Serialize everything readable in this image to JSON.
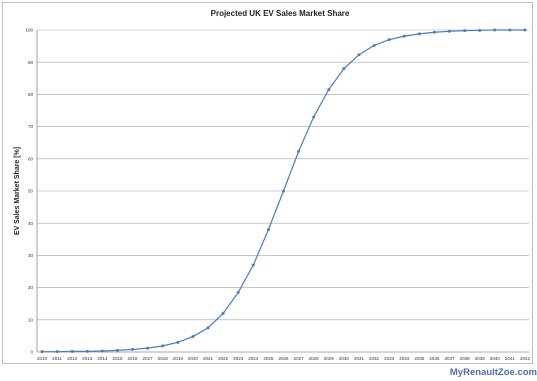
{
  "chart_data": {
    "type": "line",
    "title": "Projected UK EV Sales Market Share",
    "xlabel": "",
    "ylabel": "EV Sales Market Share [%]",
    "ylim": [
      0,
      100
    ],
    "yticks": [
      0,
      10,
      20,
      30,
      40,
      50,
      60,
      70,
      80,
      90,
      100
    ],
    "grid": true,
    "legend": "none",
    "categories": [
      "2010",
      "2011",
      "2012",
      "2013",
      "2014",
      "2015",
      "2016",
      "2017",
      "2018",
      "2019",
      "2020",
      "2021",
      "2022",
      "2023",
      "2024",
      "2025",
      "2026",
      "2027",
      "2028",
      "2029",
      "2030",
      "2031",
      "2032",
      "2033",
      "2034",
      "2035",
      "2036",
      "2037",
      "2038",
      "2039",
      "2040",
      "2041",
      "2042"
    ],
    "series": [
      {
        "color": "#4a7ebb",
        "values": [
          0.1,
          0.1,
          0.2,
          0.2,
          0.3,
          0.5,
          0.8,
          1.2,
          1.9,
          3.0,
          4.8,
          7.5,
          12.0,
          18.5,
          27.0,
          38.0,
          50.0,
          62.3,
          73.0,
          81.5,
          88.0,
          92.3,
          95.2,
          97.0,
          98.1,
          98.8,
          99.3,
          99.6,
          99.8,
          99.9,
          100,
          100,
          100
        ]
      }
    ]
  },
  "watermark": {
    "text": "MyRenaultZoe.com",
    "color": "#4a6fb5"
  }
}
